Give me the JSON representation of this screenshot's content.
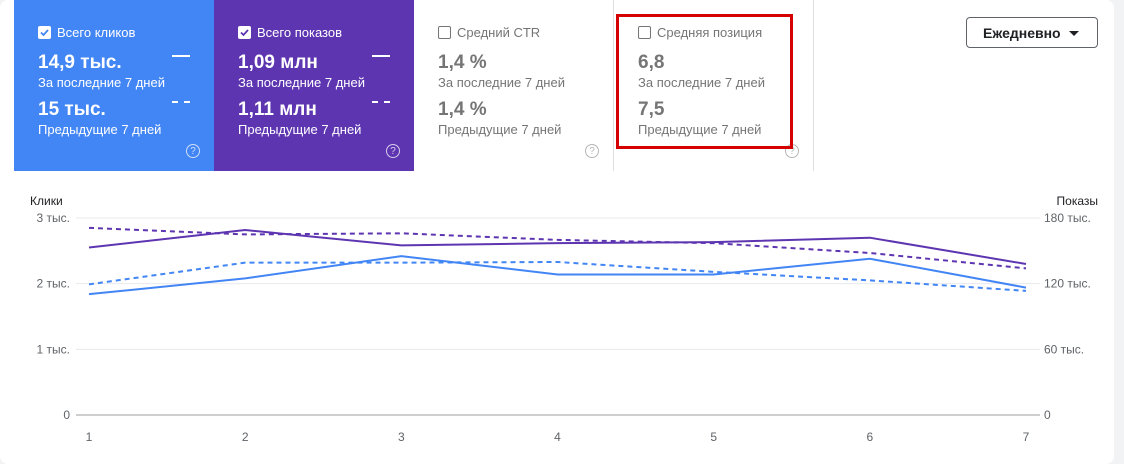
{
  "tiles": [
    {
      "id": "clicks",
      "label": "Всего кликов",
      "checked": true,
      "current_value": "14,9 тыс.",
      "current_label": "За последние 7 дней",
      "previous_value": "15 тыс.",
      "previous_label": "Предыдущие 7 дней",
      "help": "?"
    },
    {
      "id": "impressions",
      "label": "Всего показов",
      "checked": true,
      "current_value": "1,09 млн",
      "current_label": "За последние 7 дней",
      "previous_value": "1,11 млн",
      "previous_label": "Предыдущие 7 дней",
      "help": "?"
    },
    {
      "id": "ctr",
      "label": "Средний CTR",
      "checked": false,
      "current_value": "1,4 %",
      "current_label": "За последние 7 дней",
      "previous_value": "1,4 %",
      "previous_label": "Предыдущие 7 дней",
      "help": "?"
    },
    {
      "id": "position",
      "label": "Средняя позиция",
      "checked": false,
      "current_value": "6,8",
      "current_label": "За последние 7 дней",
      "previous_value": "7,5",
      "previous_label": "Предыдущие 7 дней",
      "help": "?"
    }
  ],
  "dropdown": {
    "label": "Ежедневно"
  },
  "colors": {
    "clicks": "#4285f4",
    "impressions": "#5e35b1",
    "highlight": "#d50000"
  },
  "chart_data": {
    "type": "line",
    "x": [
      1,
      2,
      3,
      4,
      5,
      6,
      7
    ],
    "y_left": {
      "label": "Клики",
      "ticks": [
        "0",
        "1 тыс.",
        "2 тыс.",
        "3 тыс."
      ],
      "tick_values": [
        0,
        1000,
        2000,
        3000
      ],
      "ylim": [
        0,
        3000
      ]
    },
    "y_right": {
      "label": "Показы",
      "ticks": [
        "0",
        "60 тыс.",
        "120 тыс.",
        "180 тыс."
      ],
      "tick_values": [
        0,
        60000,
        120000,
        180000
      ],
      "ylim": [
        0,
        180000
      ]
    },
    "grid": true,
    "series": [
      {
        "metric": "clicks",
        "period": "current",
        "style": "solid",
        "axis": "left",
        "color": "#4285f4",
        "values": [
          1840,
          2080,
          2420,
          2140,
          2140,
          2380,
          1940
        ]
      },
      {
        "metric": "clicks",
        "period": "previous",
        "style": "dashed",
        "axis": "left",
        "color": "#4285f4",
        "values": [
          1990,
          2320,
          2320,
          2330,
          2180,
          2050,
          1890
        ]
      },
      {
        "metric": "impressions",
        "period": "current",
        "style": "solid",
        "axis": "right",
        "color": "#5e35b1",
        "values": [
          153000,
          169000,
          155000,
          157000,
          158000,
          162000,
          138000
        ]
      },
      {
        "metric": "impressions",
        "period": "previous",
        "style": "dashed",
        "axis": "right",
        "color": "#5e35b1",
        "values": [
          171000,
          165000,
          166000,
          160000,
          157000,
          148000,
          134000
        ]
      }
    ]
  }
}
